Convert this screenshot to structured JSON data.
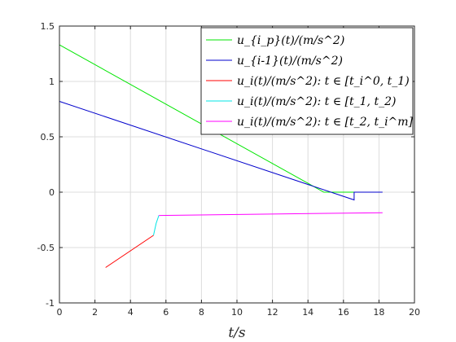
{
  "chart_data": {
    "type": "line",
    "xlabel": "t/s",
    "ylabel": "",
    "xlim": [
      0,
      20
    ],
    "ylim": [
      -1,
      1.5
    ],
    "grid": true,
    "legend_position": "top-right",
    "x_ticks": [
      "0",
      "2",
      "4",
      "6",
      "8",
      "10",
      "12",
      "14",
      "16",
      "18",
      "20"
    ],
    "y_ticks": [
      "-1",
      "-0.5",
      "0",
      "0.5",
      "1",
      "1.5"
    ],
    "series": [
      {
        "name": "u_{i_p}(t)/(m/s^2)",
        "color": "#00e600",
        "points": [
          [
            0,
            1.33
          ],
          [
            14.9,
            0.0
          ],
          [
            16.6,
            0.0
          ]
        ]
      },
      {
        "name": "u_{i-1}(t)/(m/s^2)",
        "color": "#0000cc",
        "points": [
          [
            0,
            0.82
          ],
          [
            16.6,
            -0.07
          ],
          [
            16.6,
            0.0
          ],
          [
            18.2,
            0.0
          ]
        ]
      },
      {
        "name": "u_i(t)/(m/s^2): t ∈ [t_i^0, t_1)",
        "color": "#ff0000",
        "points": [
          [
            2.6,
            -0.68
          ],
          [
            5.3,
            -0.39
          ]
        ]
      },
      {
        "name": "u_i(t)/(m/s^2): t ∈ [t_1, t_2)",
        "color": "#00e5e5",
        "points": [
          [
            5.3,
            -0.39
          ],
          [
            5.45,
            -0.28
          ],
          [
            5.6,
            -0.21
          ]
        ]
      },
      {
        "name": "u_i(t)/(m/s^2): t ∈ [t_2, t_i^m]",
        "color": "#ff00ff",
        "points": [
          [
            5.6,
            -0.21
          ],
          [
            18.2,
            -0.185
          ]
        ]
      }
    ]
  }
}
